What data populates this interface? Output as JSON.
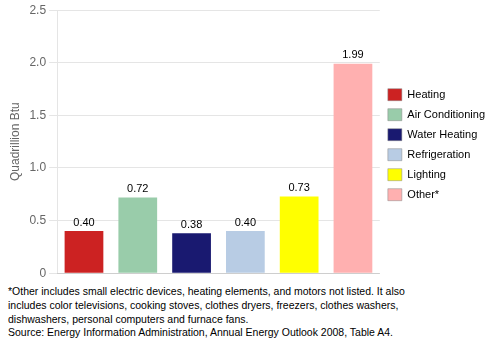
{
  "chart_data": {
    "type": "bar",
    "categories": [
      "Heating",
      "Air Conditioning",
      "Water Heating",
      "Refrigeration",
      "Lighting",
      "Other*"
    ],
    "values": [
      0.4,
      0.72,
      0.38,
      0.4,
      0.73,
      1.99
    ],
    "value_labels": [
      "0.40",
      "0.72",
      "0.38",
      "0.40",
      "0.73",
      "1.99"
    ],
    "colors": [
      "#cc2222",
      "#99ccaa",
      "#191970",
      "#b8cce4",
      "#ffff00",
      "#ffb0b0"
    ],
    "ylabel": "Quadrillion Btu",
    "ylim": [
      0,
      2.5
    ],
    "yticks": [
      0,
      0.5,
      {
        "value": 1.0,
        "label": "1.0"
      },
      1.5,
      {
        "value": 2.0,
        "label": "2.0"
      },
      2.5
    ],
    "grid": true,
    "legend": "right",
    "data_labels": true,
    "tick_labels": "y",
    "annotations": [
      "*Other includes small electric devices, heating elements, and motors not listed. It also",
      "includes color televisions, cooking stoves, clothes dryers, freezers, clothes washers,",
      "dishwashers, personal computers and furnace fans.",
      "Source: Energy Information Administration, Annual Energy Outlook 2008, Table A4."
    ]
  }
}
